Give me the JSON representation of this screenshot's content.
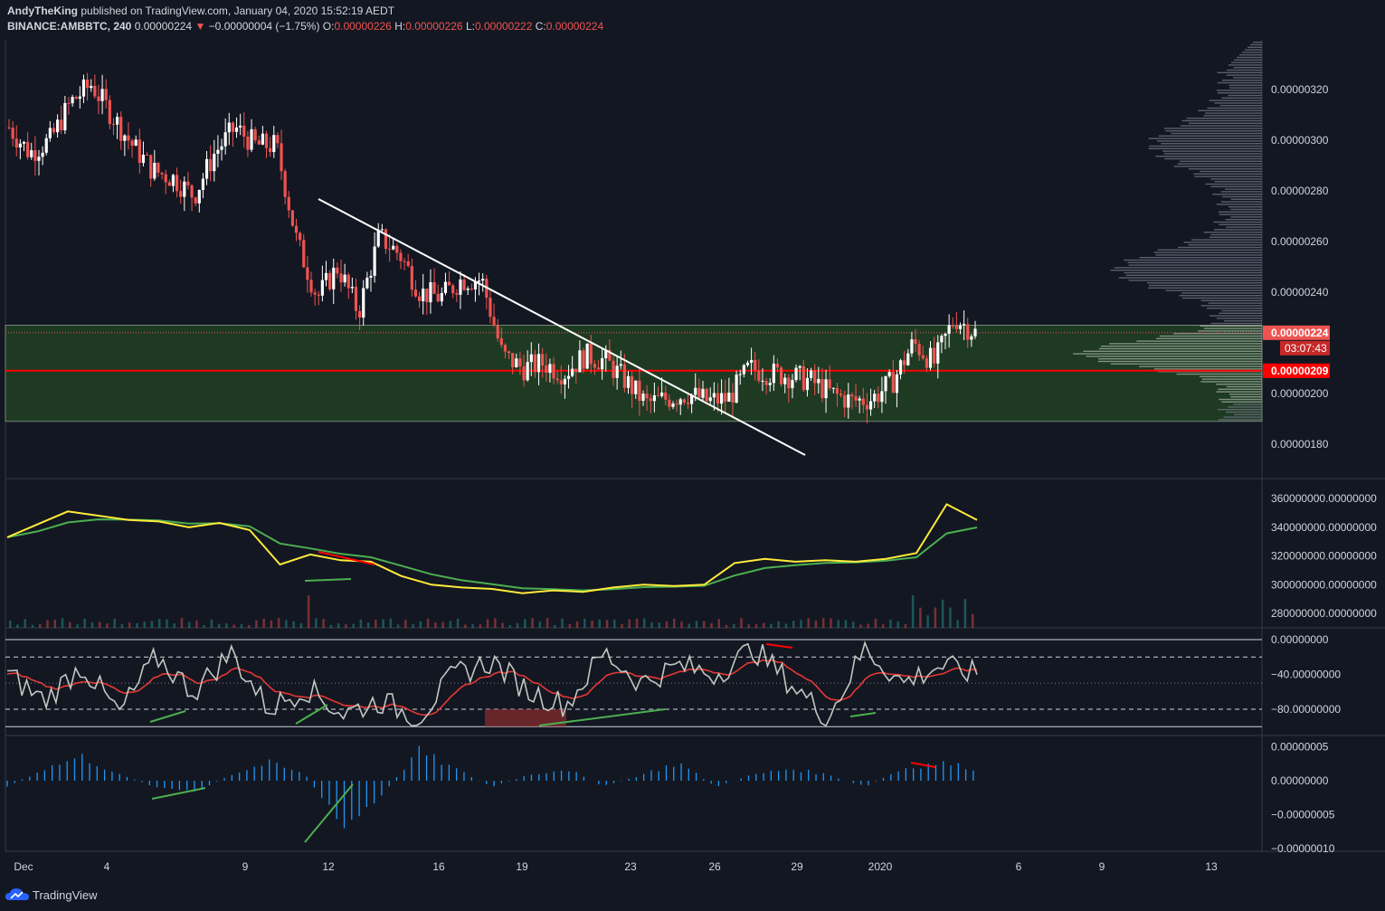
{
  "header": {
    "author": "AndyTheKing",
    "published": "published on TradingView.com, January 04, 2020 15:52:19 AEDT",
    "symbol": "BINANCE:AMBBTC, 240",
    "last": "0.00000224",
    "arrow": "▼",
    "change": "−0.00000004 (−1.75%)",
    "o_label": "O:",
    "o_value": "0.00000226",
    "h_label": "H:",
    "h_value": "0.00000226",
    "l_label": "L:",
    "l_value": "0.00000222",
    "c_label": "C:",
    "c_value": "0.00000224"
  },
  "price_axis": {
    "labels": [
      "0.00000320",
      "0.00000300",
      "0.00000280",
      "0.00000260",
      "0.00000240",
      "0.00000200",
      "0.00000180"
    ],
    "current_price": "0.00000224",
    "countdown": "03:07:43",
    "support_price": "0.00000209"
  },
  "obv_axis": {
    "labels": [
      "360000000.00000000",
      "340000000.00000000",
      "320000000.00000000",
      "300000000.00000000",
      "280000000.00000000"
    ]
  },
  "wr_axis": {
    "labels": [
      "0.00000000",
      "−40.00000000",
      "−80.00000000"
    ]
  },
  "macd_axis": {
    "labels": [
      "0.00000005",
      "0.00000000",
      "−0.00000005",
      "−0.00000010"
    ]
  },
  "time_axis": {
    "labels": [
      "Dec",
      "4",
      "9",
      "12",
      "16",
      "19",
      "23",
      "26",
      "29",
      "2020",
      "6",
      "9",
      "13"
    ]
  },
  "footer": {
    "brand": "TradingView"
  },
  "colors": {
    "background": "#131722",
    "up": "#ffffff",
    "down": "#ef5350",
    "zone": "#1e3a23",
    "support": "#ff0000",
    "obv": "#ffeb3b",
    "obv_ma": "#4caf50",
    "wr": "#c0c8c0",
    "wr_ma": "#e53935",
    "macd": "#2196f3"
  },
  "chart_data": {
    "type": "candlestick",
    "title": "BINANCE:AMBBTC, 240",
    "xlabel": "",
    "ylabel": "",
    "ylim": [
      1.72e-06,
      3.4e-06
    ],
    "x_labels": [
      "Dec",
      "4",
      "9",
      "12",
      "16",
      "19",
      "23",
      "26",
      "29",
      "2020",
      "6",
      "9",
      "13"
    ],
    "price_path": [
      3.05e-06,
      2.95e-06,
      3e-06,
      3.15e-06,
      3.22e-06,
      3.1e-06,
      2.98e-06,
      2.88e-06,
      2.85e-06,
      2.78e-06,
      2.95e-06,
      3.05e-06,
      2.98e-06,
      2.98e-06,
      2.6e-06,
      2.38e-06,
      2.5e-06,
      2.32e-06,
      2.62e-06,
      2.55e-06,
      2.4e-06,
      2.38e-06,
      2.45e-06,
      2.45e-06,
      2.15e-06,
      2.1e-06,
      2.12e-06,
      2.08e-06,
      2.15e-06,
      2.13e-06,
      2.05e-06,
      1.96e-06,
      1.98e-06,
      2e-06,
      1.97e-06,
      1.98e-06,
      2.1e-06,
      2.08e-06,
      2.07e-06,
      2.05e-06,
      2e-06,
      1.97e-06,
      1.98e-06,
      2.05e-06,
      2.2e-06,
      2.12e-06,
      2.3e-06,
      2.24e-06
    ],
    "support_level": 2.09e-06,
    "zone_range": [
      1.89e-06,
      2.27e-06
    ],
    "current_price": 2.24e-06,
    "trendline": [
      [
        2.78e-06,
        "Dec 12"
      ],
      [
        1.77e-06,
        "Dec 29"
      ]
    ],
    "obv": [
      333000000,
      342000000,
      351000000,
      348000000,
      345000000,
      344000000,
      340000000,
      343000000,
      338000000,
      314000000,
      321000000,
      317000000,
      316000000,
      306000000,
      300000000,
      298000000,
      297000000,
      294000000,
      296000000,
      295000000,
      298000000,
      300000000,
      299000000,
      300000000,
      315000000,
      318000000,
      316000000,
      317000000,
      316000000,
      318000000,
      322000000,
      356000000,
      345000000
    ],
    "williams_r": [
      -40,
      -70,
      -30,
      -85,
      -20,
      -60,
      -15,
      -80,
      -55,
      -85,
      -70,
      -90,
      -40,
      -25,
      -60,
      -75,
      -15,
      -50,
      -30,
      -40,
      -10,
      -50,
      -90,
      -10,
      -50,
      -30,
      -40
    ],
    "macd_histogram": [
      -1,
      2,
      4,
      1,
      -1,
      -2,
      1,
      3,
      1,
      -8,
      -3,
      5,
      2,
      -1,
      1,
      2,
      -1,
      1,
      3,
      -1,
      1,
      2,
      1,
      -1,
      2,
      3,
      2
    ]
  }
}
